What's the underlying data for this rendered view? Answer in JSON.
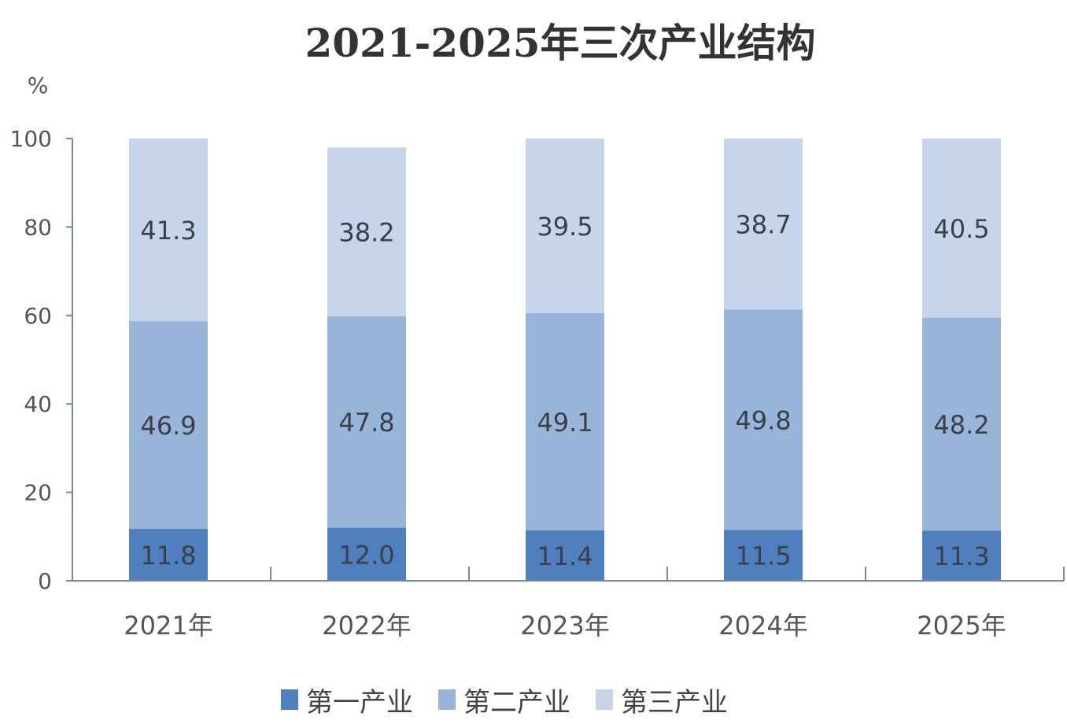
{
  "chart_data": {
    "type": "bar",
    "stacked": true,
    "title": "2021-2025年三次产业结构",
    "ylabel": "%",
    "xlabel": "",
    "ylim": [
      0,
      100
    ],
    "yticks": [
      0,
      20,
      40,
      60,
      80,
      100
    ],
    "categories": [
      "2021年",
      "2022年",
      "2023年",
      "2024年",
      "2025年"
    ],
    "series": [
      {
        "name": "第一产业",
        "color": "#4f7fbc",
        "values": [
          11.8,
          12.0,
          11.4,
          11.5,
          11.3
        ]
      },
      {
        "name": "第二产业",
        "color": "#99b4d9",
        "values": [
          46.9,
          47.8,
          49.1,
          49.8,
          48.2
        ]
      },
      {
        "name": "第三产业",
        "color": "#c6d5ea",
        "values": [
          41.3,
          38.2,
          39.5,
          38.7,
          40.5
        ]
      }
    ],
    "data_labels": true,
    "grid": false,
    "legend_position": "bottom"
  }
}
